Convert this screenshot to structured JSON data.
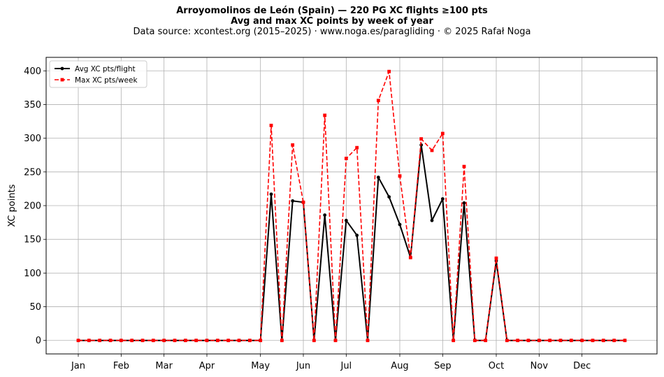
{
  "header": {
    "title_line1": "Arroyomolinos de León (Spain)  —  220 PG XC flights ≥100 pts",
    "title_line2": "Avg and max XC points by week of year",
    "subtitle": "Data source: xcontest.org (2015–2025)  ·  www.noga.es/paragliding  ·  © 2025 Rafał Noga"
  },
  "chart_data": {
    "type": "line",
    "title": "Arroyomolinos de León (Spain)  —  220 PG XC flights ≥100 pts",
    "subtitle": "Avg and max XC points by week of year",
    "xlabel": "",
    "ylabel": "XC points",
    "x_unit": "week of year",
    "x": [
      1,
      2,
      3,
      4,
      5,
      6,
      7,
      8,
      9,
      10,
      11,
      12,
      13,
      14,
      15,
      16,
      17,
      18,
      19,
      20,
      21,
      22,
      23,
      24,
      25,
      26,
      27,
      28,
      29,
      30,
      31,
      32,
      33,
      34,
      35,
      36,
      37,
      38,
      39,
      40,
      41,
      42,
      43,
      44,
      45,
      46,
      47,
      48,
      49,
      50,
      51,
      52
    ],
    "x_tick_weeks": [
      1,
      5,
      9,
      13,
      18,
      22,
      26,
      31,
      35,
      40,
      44,
      48
    ],
    "x_tick_labels": [
      "Jan",
      "Feb",
      "Mar",
      "Apr",
      "May",
      "Jun",
      "Jul",
      "Aug",
      "Sep",
      "Oct",
      "Nov",
      "Dec"
    ],
    "y_ticks": [
      0,
      50,
      100,
      150,
      200,
      250,
      300,
      350,
      400
    ],
    "ylim": [
      -20,
      420
    ],
    "xlim": [
      -2,
      55
    ],
    "grid": true,
    "legend_position": "top-left",
    "series": [
      {
        "name": "Avg XC pts/flight",
        "color": "#000000",
        "style": "solid",
        "marker": "circle",
        "values": [
          0,
          0,
          0,
          0,
          0,
          0,
          0,
          0,
          0,
          0,
          0,
          0,
          0,
          0,
          0,
          0,
          0,
          0,
          217,
          0,
          207,
          205,
          0,
          186,
          0,
          178,
          156,
          0,
          242,
          213,
          172,
          123,
          290,
          178,
          210,
          0,
          204,
          0,
          0,
          118,
          0,
          0,
          0,
          0,
          0,
          0,
          0,
          0,
          0,
          0,
          0,
          0
        ]
      },
      {
        "name": "Max XC pts/week",
        "color": "#ff0000",
        "style": "dashed",
        "marker": "square",
        "values": [
          0,
          0,
          0,
          0,
          0,
          0,
          0,
          0,
          0,
          0,
          0,
          0,
          0,
          0,
          0,
          0,
          0,
          0,
          319,
          0,
          290,
          205,
          0,
          334,
          0,
          270,
          286,
          0,
          356,
          399,
          244,
          123,
          299,
          282,
          307,
          0,
          258,
          0,
          0,
          122,
          0,
          0,
          0,
          0,
          0,
          0,
          0,
          0,
          0,
          0,
          0,
          0
        ]
      }
    ]
  }
}
